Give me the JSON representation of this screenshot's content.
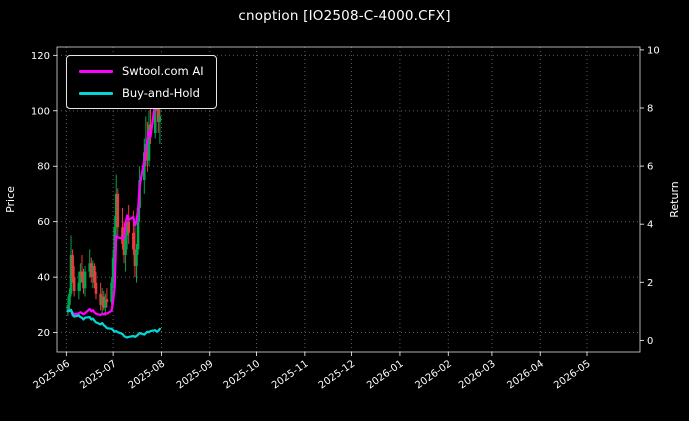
{
  "title": "cnoption [IO2508-C-4000.CFX]",
  "colors": {
    "background": "#000000",
    "text": "#ffffff",
    "grid": "#666666",
    "spine": "#dddddd",
    "tick": "#ffffff",
    "legend_border": "#e6e6e6",
    "legend_bg": "#000000",
    "ai_line": "#ff00ff",
    "bh_line": "#00d8d8",
    "candle_up": "#00a650",
    "candle_down": "#ef3b3b"
  },
  "chart_data": {
    "type": "candlestick",
    "title": "cnoption [IO2508-C-4000.CFX]",
    "ylabel_left": "Price",
    "ylabel_right": "Return",
    "legend_position": "upper-left",
    "grid": "dotted",
    "price_ticks": [
      20,
      40,
      60,
      80,
      100,
      120
    ],
    "price_domain": [
      13,
      123
    ],
    "return_ticks": [
      0,
      2,
      4,
      6,
      8,
      10
    ],
    "return_domain": [
      -0.4,
      10.1
    ],
    "x_domain": [
      "2025-05-26",
      "2026-06-04"
    ],
    "x_ticks": [
      {
        "date": "2025-06-01",
        "label": "2025-06"
      },
      {
        "date": "2025-07-01",
        "label": "2025-07"
      },
      {
        "date": "2025-08-01",
        "label": "2025-08"
      },
      {
        "date": "2025-09-01",
        "label": "2025-09"
      },
      {
        "date": "2025-10-01",
        "label": "2025-10"
      },
      {
        "date": "2025-11-01",
        "label": "2025-11"
      },
      {
        "date": "2025-12-01",
        "label": "2025-12"
      },
      {
        "date": "2026-01-01",
        "label": "2026-01"
      },
      {
        "date": "2026-02-01",
        "label": "2026-02"
      },
      {
        "date": "2026-03-01",
        "label": "2026-03"
      },
      {
        "date": "2026-04-01",
        "label": "2026-04"
      },
      {
        "date": "2026-05-01",
        "label": "2026-05"
      }
    ],
    "candle_up_color": "#00a650",
    "candle_down_color": "#ef3b3b",
    "dates": [
      "2025-06-02",
      "2025-06-03",
      "2025-06-04",
      "2025-06-05",
      "2025-06-06",
      "2025-06-09",
      "2025-06-10",
      "2025-06-11",
      "2025-06-12",
      "2025-06-13",
      "2025-06-16",
      "2025-06-17",
      "2025-06-18",
      "2025-06-19",
      "2025-06-20",
      "2025-06-23",
      "2025-06-24",
      "2025-06-25",
      "2025-06-26",
      "2025-06-27",
      "2025-06-30",
      "2025-07-01",
      "2025-07-02",
      "2025-07-03",
      "2025-07-04",
      "2025-07-07",
      "2025-07-08",
      "2025-07-09",
      "2025-07-10",
      "2025-07-11",
      "2025-07-14",
      "2025-07-15",
      "2025-07-16",
      "2025-07-17",
      "2025-07-18",
      "2025-07-21",
      "2025-07-22",
      "2025-07-23",
      "2025-07-24",
      "2025-07-25",
      "2025-07-28",
      "2025-07-29",
      "2025-07-30",
      "2025-07-31"
    ],
    "candles": {
      "open": [
        28,
        30,
        34,
        48,
        40,
        35,
        38,
        42,
        40,
        36,
        42,
        45,
        40,
        44,
        38,
        34,
        30,
        33,
        29,
        32,
        31,
        38,
        47,
        58,
        70,
        58,
        52,
        48,
        55,
        60,
        56,
        50,
        44,
        50,
        65,
        75,
        85,
        88,
        82,
        95,
        92,
        108,
        104,
        96
      ],
      "high": [
        33,
        36,
        55,
        50,
        44,
        42,
        45,
        48,
        43,
        44,
        50,
        47,
        46,
        45,
        42,
        38,
        36,
        35,
        34,
        36,
        40,
        50,
        62,
        77,
        72,
        65,
        60,
        56,
        62,
        66,
        64,
        58,
        52,
        68,
        80,
        90,
        98,
        96,
        100,
        108,
        112,
        116,
        110,
        102
      ],
      "low": [
        26,
        28,
        33,
        38,
        33,
        32,
        35,
        38,
        34,
        33,
        40,
        38,
        36,
        36,
        32,
        28,
        27,
        28,
        26,
        29,
        30,
        36,
        45,
        55,
        55,
        50,
        45,
        42,
        50,
        52,
        48,
        40,
        38,
        48,
        60,
        70,
        80,
        78,
        80,
        88,
        90,
        100,
        92,
        88
      ],
      "close": [
        30,
        34,
        48,
        40,
        35,
        38,
        42,
        40,
        36,
        42,
        45,
        40,
        44,
        38,
        34,
        30,
        33,
        29,
        32,
        31,
        38,
        47,
        58,
        70,
        58,
        52,
        48,
        55,
        60,
        56,
        50,
        44,
        50,
        65,
        75,
        85,
        88,
        82,
        95,
        92,
        108,
        104,
        96,
        98
      ]
    },
    "series": [
      {
        "name": "Swtool.com AI",
        "axis": "return",
        "color": "#ff00ff",
        "values": [
          1.0,
          1.02,
          1.05,
          0.95,
          0.9,
          0.93,
          0.97,
          0.94,
          0.9,
          0.94,
          1.08,
          1.0,
          1.04,
          0.97,
          0.92,
          0.87,
          0.92,
          0.89,
          0.94,
          0.92,
          1.02,
          1.35,
          1.85,
          3.6,
          3.55,
          3.5,
          3.55,
          4.0,
          4.3,
          4.15,
          4.25,
          3.95,
          4.1,
          4.5,
          5.3,
          6.2,
          6.55,
          6.9,
          7.2,
          7.0,
          8.2,
          9.3,
          8.6,
          8.8
        ]
      },
      {
        "name": "Buy-and-Hold",
        "axis": "return",
        "color": "#00d8d8",
        "values": [
          1.0,
          1.02,
          1.05,
          0.88,
          0.82,
          0.86,
          0.8,
          0.78,
          0.72,
          0.78,
          0.8,
          0.72,
          0.75,
          0.68,
          0.62,
          0.55,
          0.6,
          0.52,
          0.48,
          0.42,
          0.4,
          0.35,
          0.3,
          0.32,
          0.28,
          0.22,
          0.15,
          0.12,
          0.1,
          0.12,
          0.15,
          0.12,
          0.15,
          0.2,
          0.25,
          0.2,
          0.25,
          0.3,
          0.28,
          0.32,
          0.35,
          0.3,
          0.33,
          0.4
        ]
      }
    ]
  }
}
